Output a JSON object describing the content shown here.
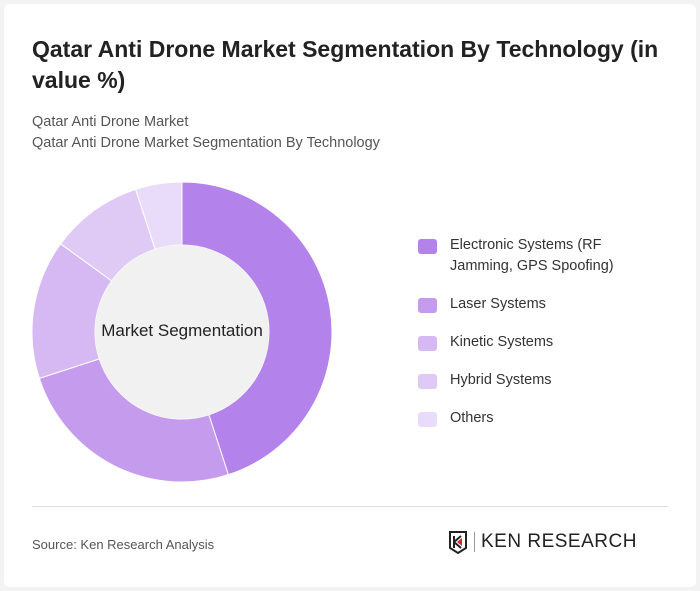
{
  "title": "Qatar Anti Drone Market Segmentation By Technology (in value %)",
  "subtitle1": "Qatar Anti Drone Market",
  "subtitle2": "Qatar Anti Drone Market Segmentation By Technology",
  "source": "Source: Ken Research Analysis",
  "logo_text": "KEN RESEARCH",
  "chart_data": {
    "type": "donut",
    "center_label": "Market Segmentation",
    "legend_position": "right",
    "categories": [
      "Electronic Systems (RF Jamming, GPS Spoofing)",
      "Laser Systems",
      "Kinetic Systems",
      "Hybrid Systems",
      "Others"
    ],
    "values": [
      45,
      25,
      15,
      10,
      5
    ],
    "colors": [
      "#b382ea",
      "#c59ced",
      "#d6b8f3",
      "#dfcaf6",
      "#e9dcfa"
    ]
  }
}
